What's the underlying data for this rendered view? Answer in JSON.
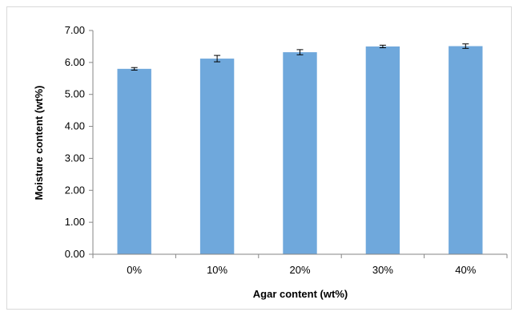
{
  "chart_data": {
    "type": "bar",
    "title": "",
    "xlabel": "Agar content (wt%)",
    "ylabel": "Moisture content (wt%)",
    "categories": [
      "0%",
      "10%",
      "20%",
      "30%",
      "40%"
    ],
    "values": [
      5.8,
      6.12,
      6.32,
      6.5,
      6.51
    ],
    "errors": [
      0.04,
      0.1,
      0.08,
      0.04,
      0.07
    ],
    "ylim": [
      0,
      7
    ],
    "yticks": [
      "0.00",
      "1.00",
      "2.00",
      "3.00",
      "4.00",
      "5.00",
      "6.00",
      "7.00"
    ],
    "grid": false,
    "legend": "none",
    "colors": {
      "bar": "#6fa8dc",
      "axis": "#868686",
      "error_bar": "#000000"
    }
  }
}
